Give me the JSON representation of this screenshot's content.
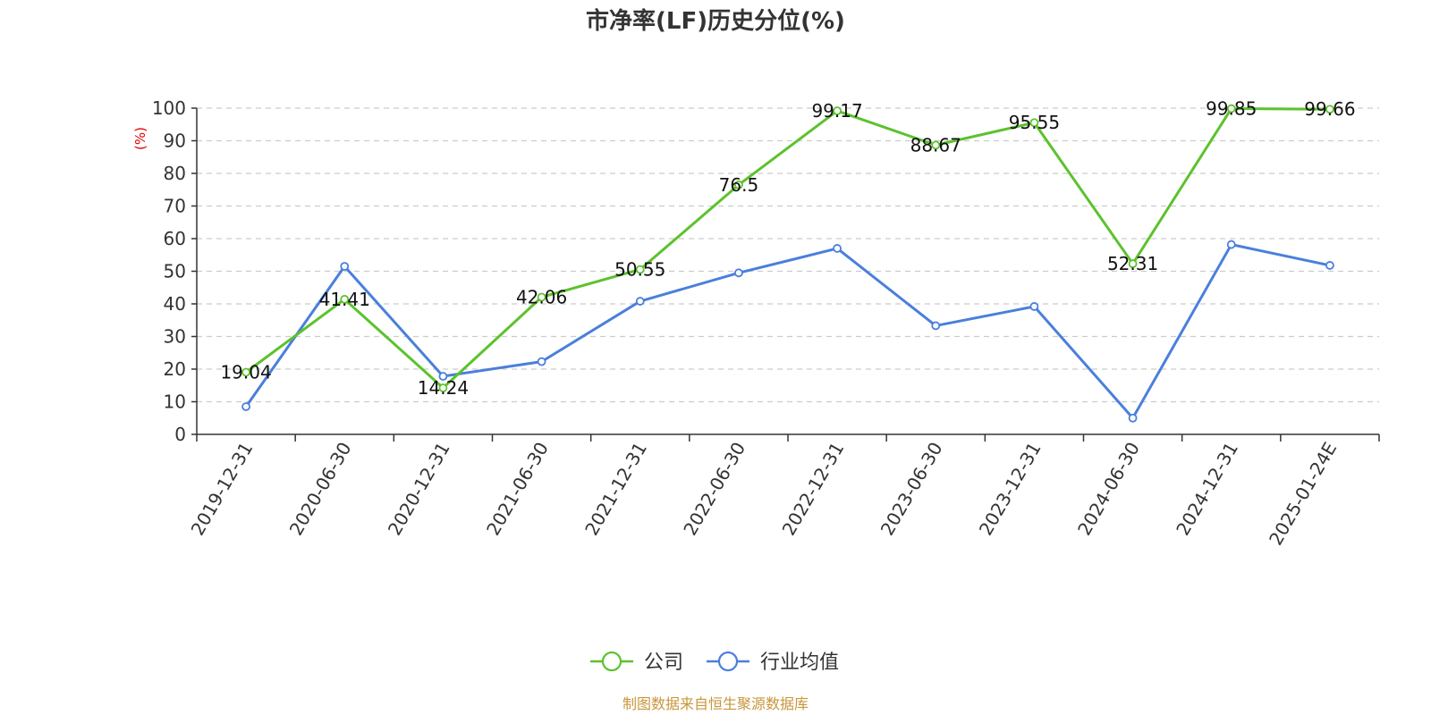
{
  "chart_data": {
    "type": "line",
    "title": "市净率(LF)历史分位(%)",
    "ylabel": "(%)",
    "ylim": [
      0,
      100
    ],
    "yticks": [
      0,
      10,
      20,
      30,
      40,
      50,
      60,
      70,
      80,
      90,
      100
    ],
    "grid": true,
    "legend_position": "bottom",
    "categories": [
      "2019-12-31",
      "2020-06-30",
      "2020-12-31",
      "2021-06-30",
      "2021-12-31",
      "2022-06-30",
      "2022-12-31",
      "2023-06-30",
      "2023-12-31",
      "2024-06-30",
      "2024-12-31",
      "2025-01-24E"
    ],
    "series": [
      {
        "name": "公司",
        "color": "#5cc22d",
        "values": [
          19.04,
          41.41,
          14.24,
          42.06,
          50.55,
          76.5,
          99.17,
          88.67,
          95.55,
          52.31,
          99.85,
          99.66
        ],
        "labels": [
          "19.04",
          "41.41",
          "14.24",
          "42.06",
          "50.55",
          "76.5",
          "99.17",
          "88.67",
          "95.55",
          "52.31",
          "99.85",
          "99.66"
        ]
      },
      {
        "name": "行业均值",
        "color": "#4a7fdc",
        "values": [
          8.5,
          51.5,
          17.8,
          22.3,
          40.8,
          49.5,
          57.0,
          33.3,
          39.2,
          5.0,
          58.2,
          51.8
        ]
      }
    ],
    "source": "制图数据来自恒生聚源数据库"
  }
}
